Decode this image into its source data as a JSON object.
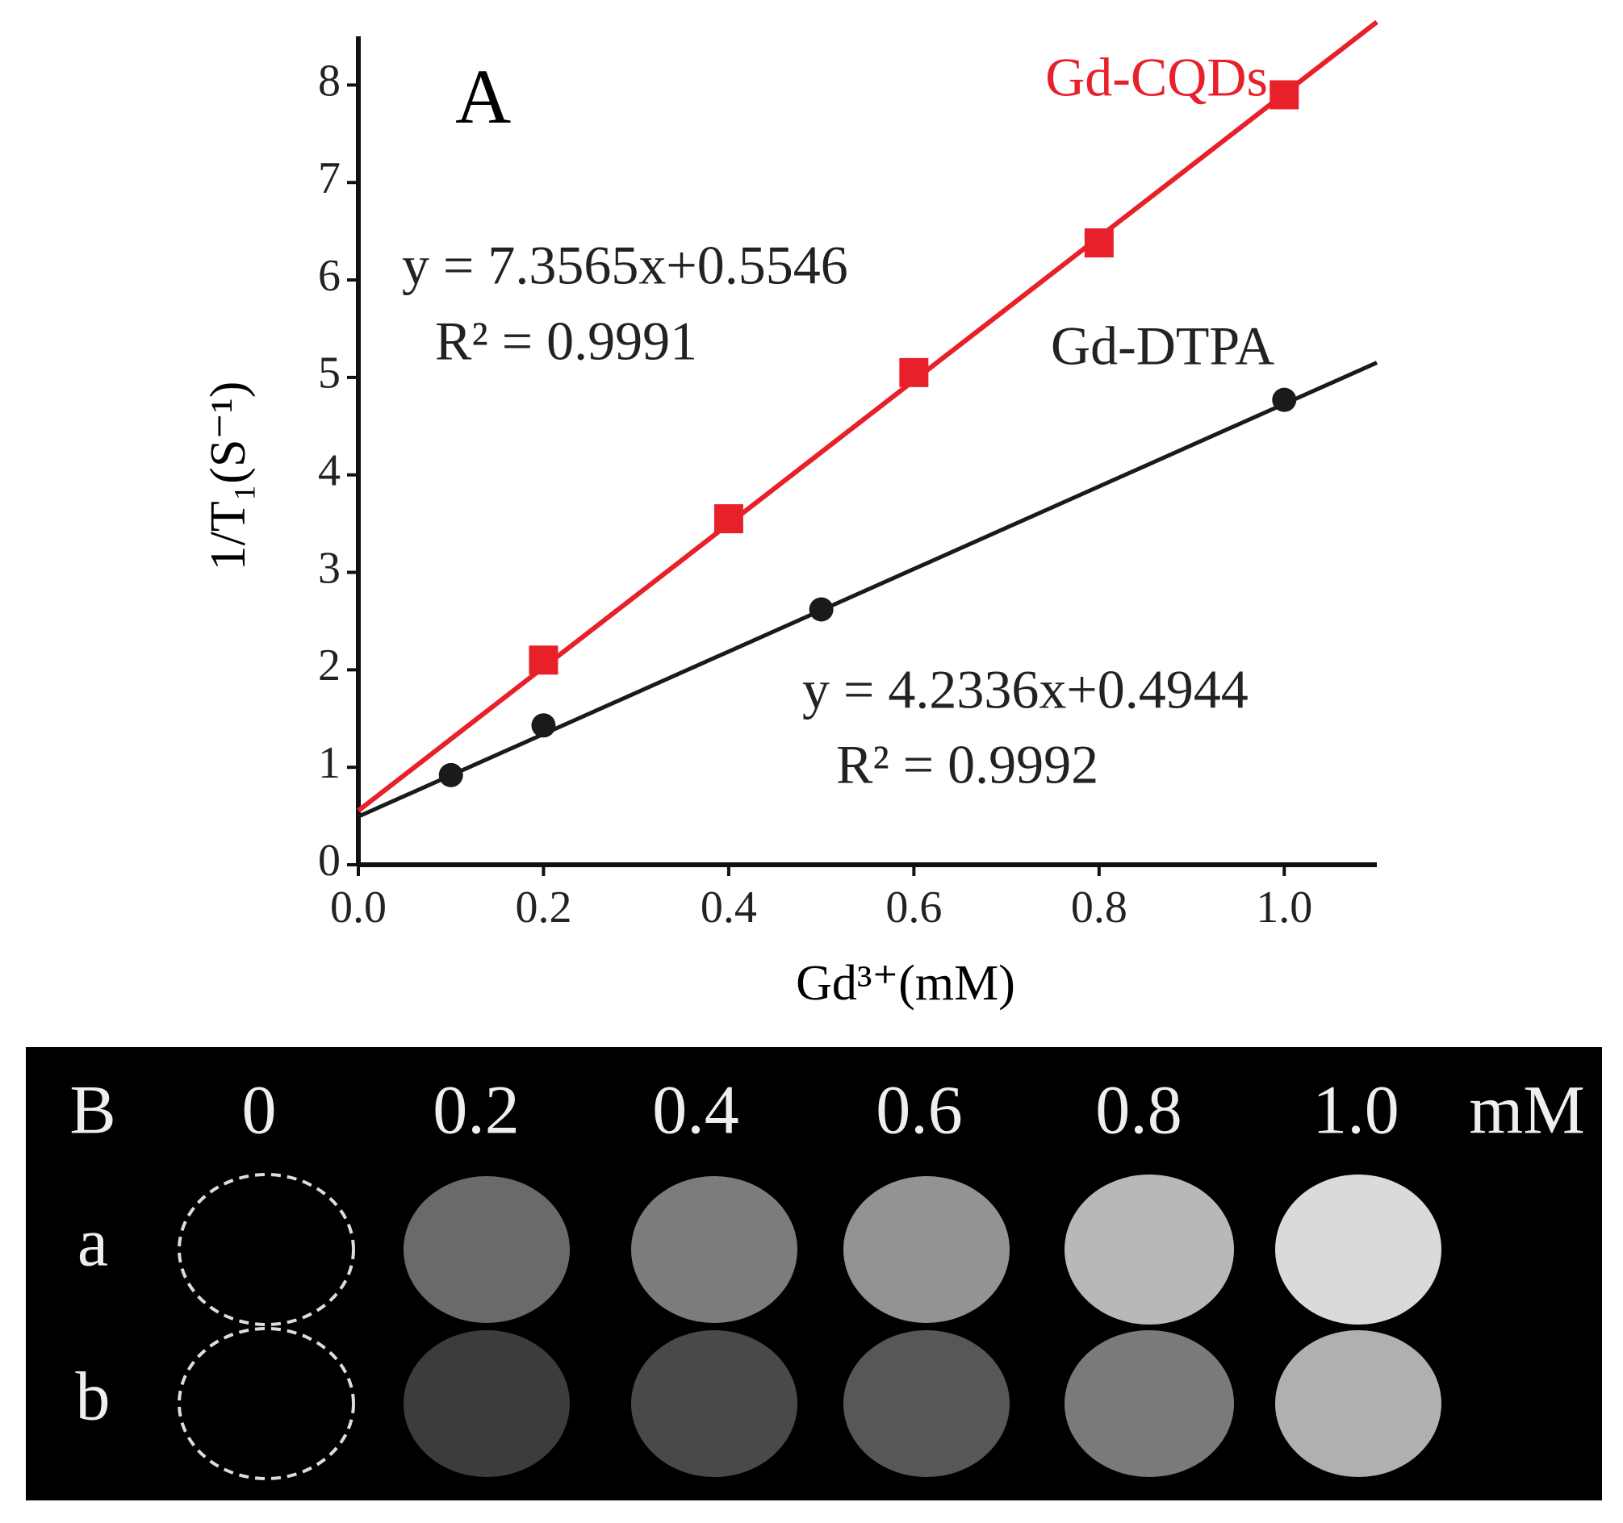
{
  "chart_data": {
    "type": "scatter",
    "panel_label": "A",
    "x_label": "Gd³⁺(mM)",
    "y_label": "1/T₁(S⁻¹)",
    "xlim": [
      0,
      1.1
    ],
    "ylim": [
      0,
      8.5
    ],
    "xticks": [
      {
        "value": 0,
        "label": "0.0"
      },
      0.2,
      0.4,
      0.6,
      0.8,
      {
        "value": 1,
        "label": "1.0"
      }
    ],
    "yticks": [
      0,
      1,
      2,
      3,
      4,
      5,
      6,
      7,
      8
    ],
    "series": [
      {
        "name": "Gd-CQDs",
        "color": "#e8202a",
        "marker": "square",
        "x": [
          0.2,
          0.4,
          0.6,
          0.8,
          1.0
        ],
        "values": [
          2.1,
          3.55,
          5.05,
          6.38,
          7.9
        ],
        "fit": {
          "slope": 7.3565,
          "intercept": 0.5546
        },
        "equation": "y = 7.3565x+0.5546",
        "r2": "R² = 0.9991"
      },
      {
        "name": "Gd-DTPA",
        "color": "#1a1a1a",
        "marker": "circle",
        "x": [
          0.1,
          0.2,
          0.5,
          1.0
        ],
        "values": [
          0.92,
          1.43,
          2.62,
          4.77
        ],
        "fit": {
          "slope": 4.2336,
          "intercept": 0.4944
        },
        "equation": "y = 4.2336x+0.4944",
        "r2": "R² = 0.9992"
      }
    ]
  },
  "panel_b": {
    "label": "B",
    "concentrations": [
      "0",
      "0.2",
      "0.4",
      "0.6",
      "0.8",
      "1.0"
    ],
    "unit": "mM",
    "rows": [
      "a",
      "b"
    ]
  }
}
